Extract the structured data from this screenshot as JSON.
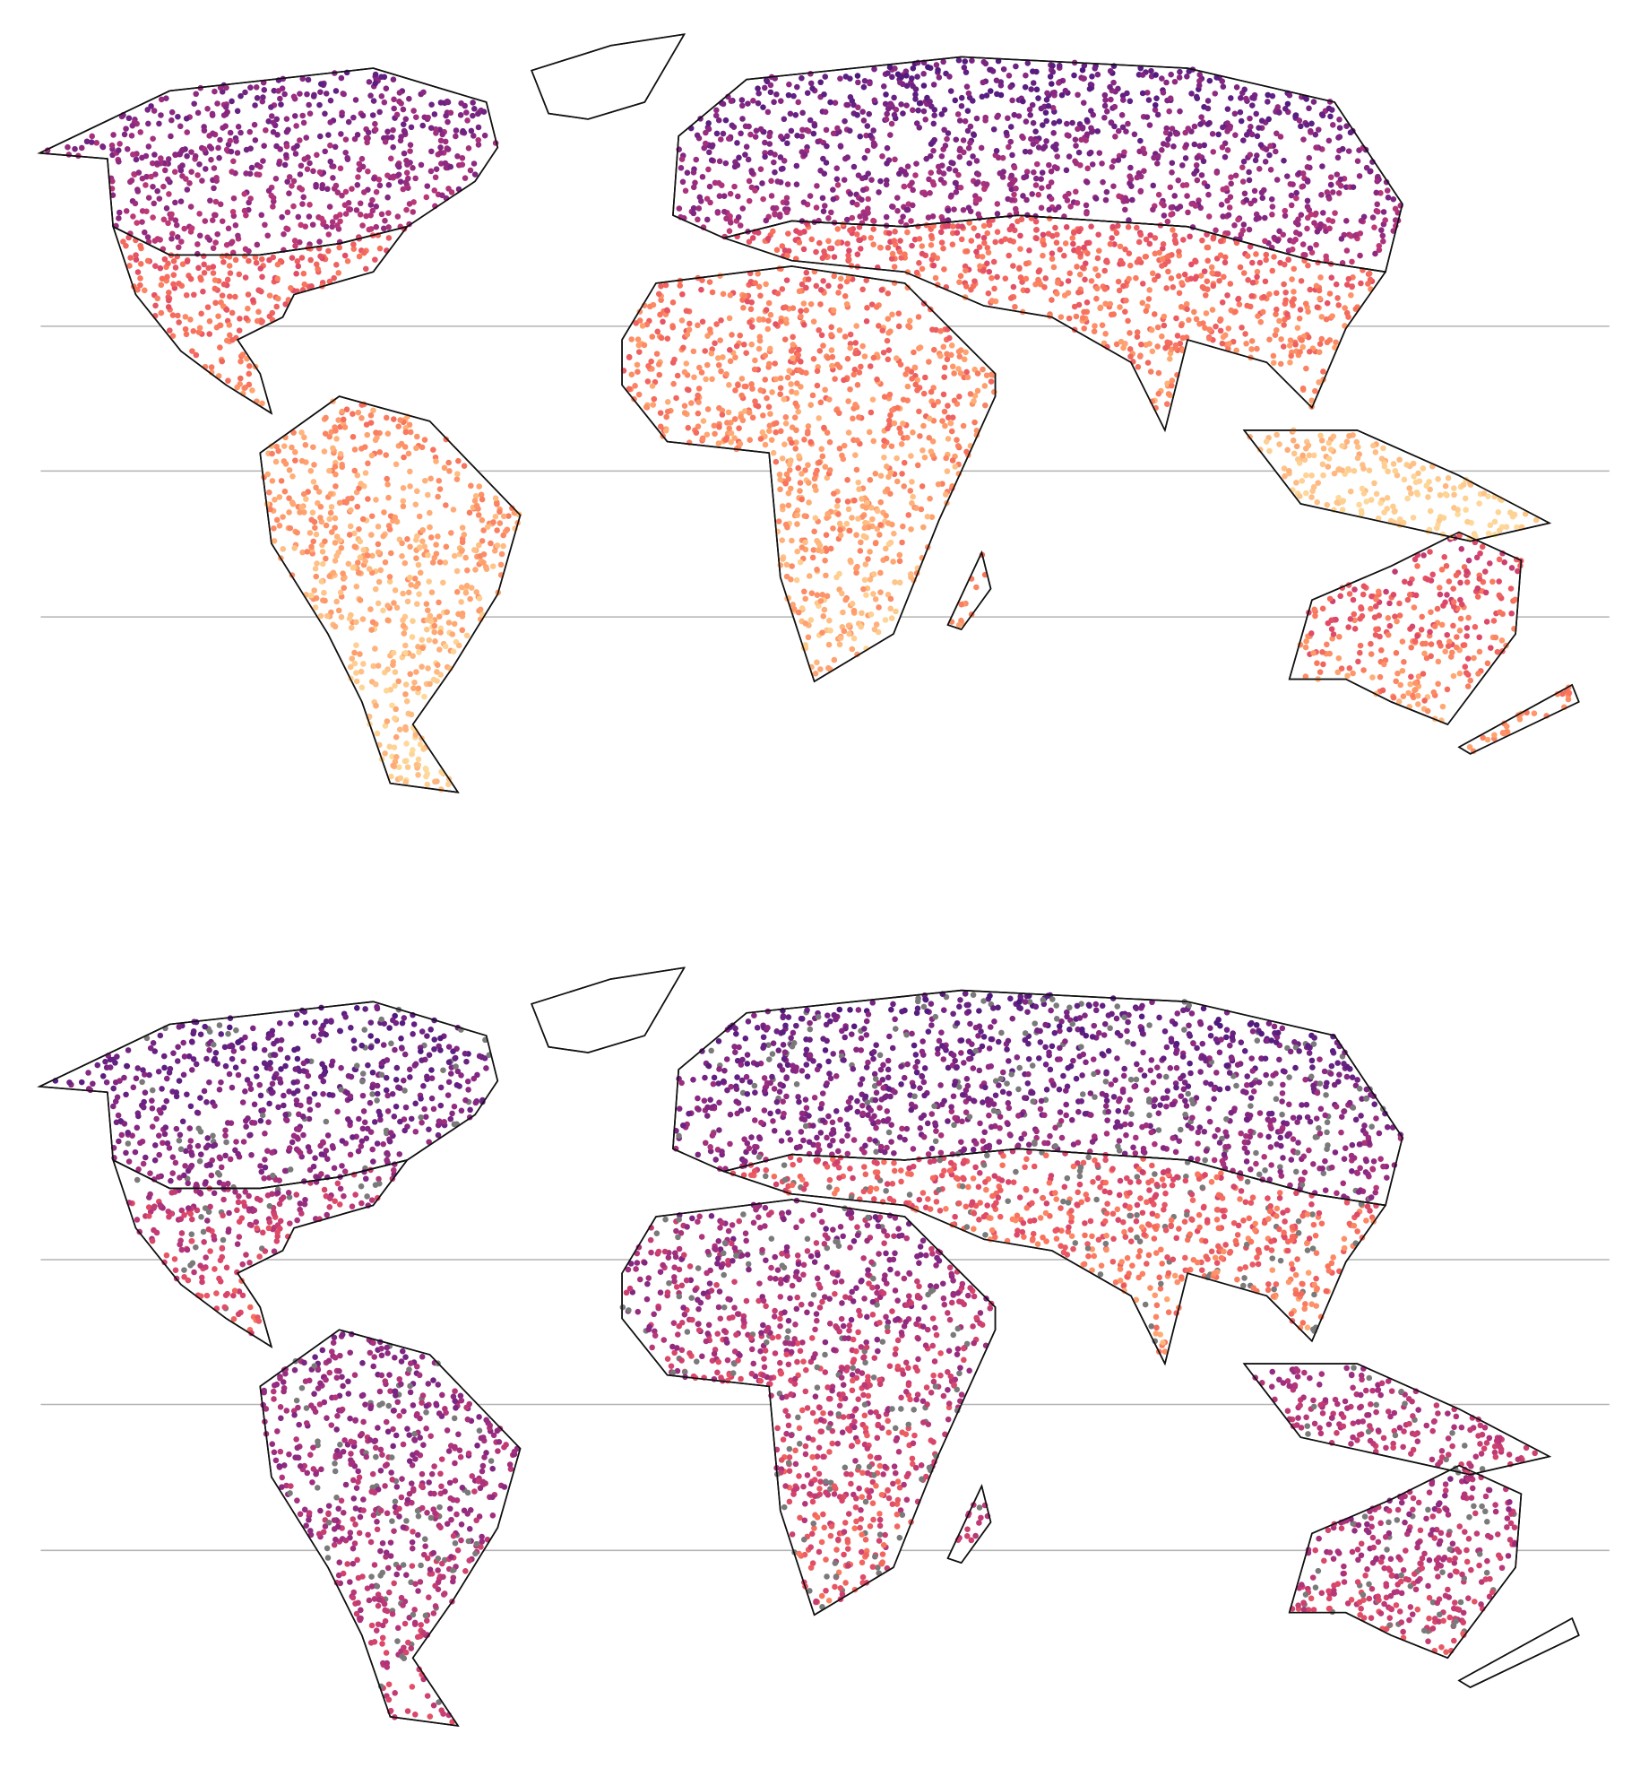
{
  "colormap": {
    "name": "magma",
    "stops": [
      "#3b0f70",
      "#5c1f82",
      "#8c2981",
      "#b73779",
      "#de4968",
      "#f7705c",
      "#fe9f6d",
      "#fecf92",
      "#fde4a6"
    ],
    "missing_color": "#7a7a7a",
    "coastline_color": "#111111",
    "gridline_color": "#b3b3b3"
  },
  "panels": [
    {
      "id": "top",
      "regions": [
        {
          "name": "north-america-north",
          "level": [
            0.1,
            0.45
          ]
        },
        {
          "name": "north-america-south",
          "level": [
            0.45,
            0.8
          ]
        },
        {
          "name": "greenland",
          "level": null
        },
        {
          "name": "south-america",
          "level": [
            0.6,
            0.98
          ]
        },
        {
          "name": "eurasia-north",
          "level": [
            0.05,
            0.45
          ]
        },
        {
          "name": "eurasia-south",
          "level": [
            0.45,
            0.85
          ]
        },
        {
          "name": "africa",
          "level": [
            0.5,
            0.95
          ]
        },
        {
          "name": "australia",
          "level": [
            0.35,
            0.85
          ]
        },
        {
          "name": "maritime-asia",
          "level": [
            0.75,
            0.98
          ]
        },
        {
          "name": "madagascar",
          "level": [
            0.55,
            0.8
          ]
        },
        {
          "name": "new-zealand",
          "level": [
            0.6,
            0.8
          ]
        }
      ],
      "missing_fraction": 0
    },
    {
      "id": "bottom",
      "regions": [
        {
          "name": "north-america-north",
          "level": [
            0.05,
            0.35
          ]
        },
        {
          "name": "north-america-south",
          "level": [
            0.2,
            0.7
          ]
        },
        {
          "name": "greenland",
          "level": null
        },
        {
          "name": "south-america",
          "level": [
            0.15,
            0.55
          ]
        },
        {
          "name": "eurasia-north",
          "level": [
            0.05,
            0.4
          ]
        },
        {
          "name": "eurasia-south",
          "level": [
            0.4,
            0.85
          ]
        },
        {
          "name": "africa",
          "level": [
            0.15,
            0.7
          ]
        },
        {
          "name": "australia",
          "level": [
            0.2,
            0.6
          ]
        },
        {
          "name": "maritime-asia",
          "level": [
            0.25,
            0.5
          ]
        },
        {
          "name": "madagascar",
          "level": [
            0.3,
            0.5
          ]
        },
        {
          "name": "new-zealand",
          "level": null
        }
      ],
      "missing_fraction": 0.12
    }
  ]
}
